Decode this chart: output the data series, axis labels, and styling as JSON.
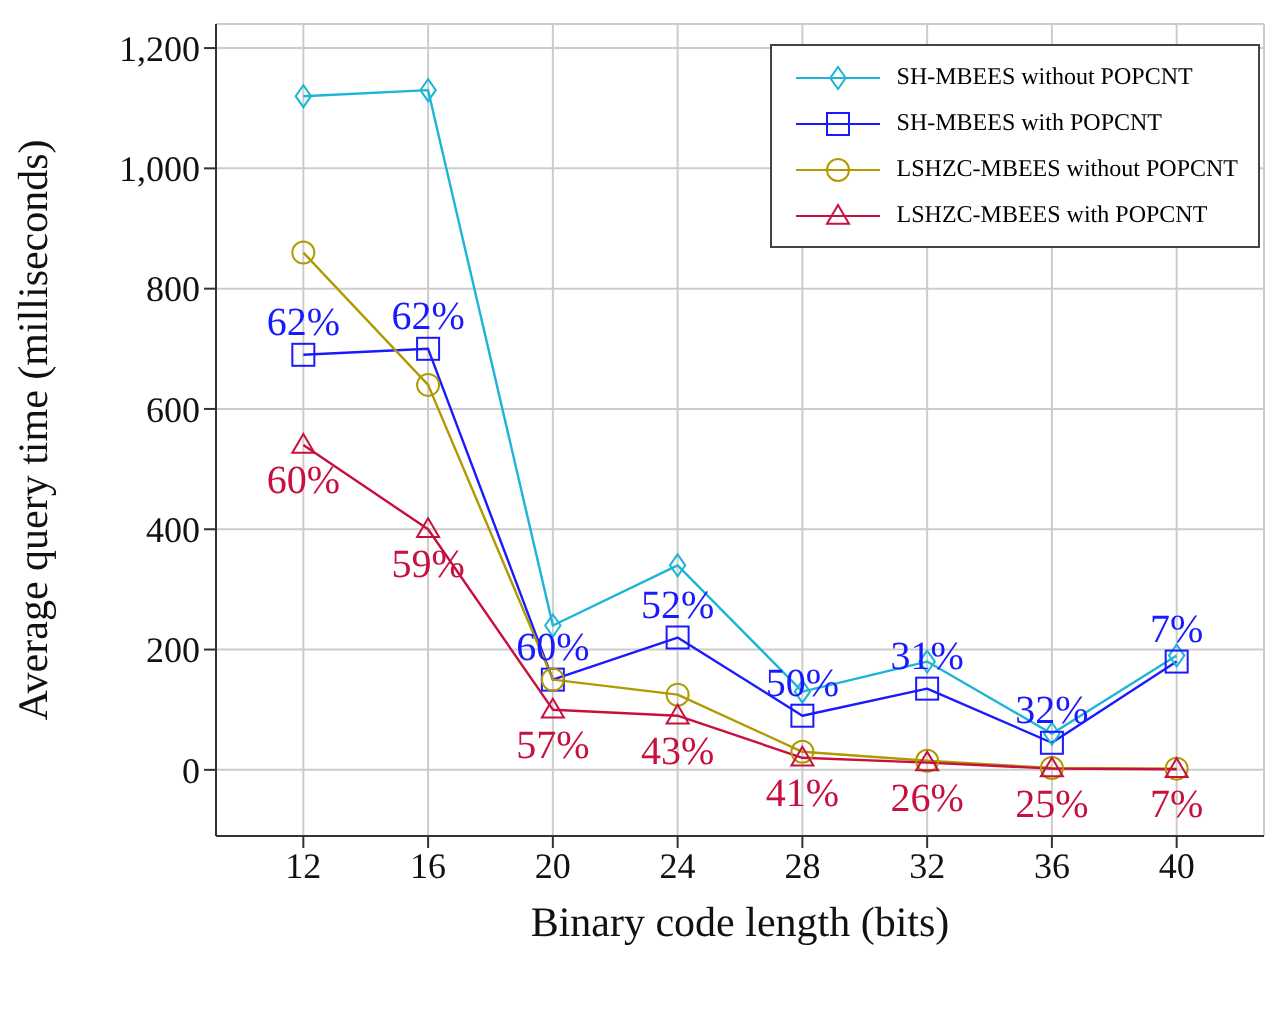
{
  "chart_data": {
    "type": "line",
    "xlabel": "Binary code length (bits)",
    "ylabel": "Average query time (milliseconds)",
    "categories": [
      "12",
      "16",
      "20",
      "24",
      "28",
      "32",
      "36",
      "40"
    ],
    "ylim": [
      -110,
      1240
    ],
    "yticks": [
      0,
      200,
      400,
      600,
      800,
      {
        "value": 1000,
        "label": "1,000"
      },
      {
        "value": 1200,
        "label": "1,200"
      }
    ],
    "grid": true,
    "legend": "top right",
    "line_style": "solid",
    "series": [
      {
        "name": "SH-MBEES without POPCNT",
        "color": "#1cb5d8",
        "marker": "diamond",
        "values": [
          1120,
          1130,
          240,
          340,
          130,
          180,
          60,
          190
        ]
      },
      {
        "name": "SH-MBEES with POPCNT",
        "color": "#1a1aff",
        "marker": "square",
        "values": [
          690,
          700,
          150,
          220,
          90,
          135,
          45,
          180
        ]
      },
      {
        "name": "LSHZC-MBEES without POPCNT",
        "color": "#b09a00",
        "marker": "circle",
        "values": [
          860,
          640,
          150,
          125,
          30,
          15,
          3,
          2
        ]
      },
      {
        "name": "LSHZC-MBEES with POPCNT",
        "color": "#c8103f",
        "marker": "triangle",
        "values": [
          540,
          400,
          100,
          90,
          20,
          12,
          2,
          1
        ]
      }
    ],
    "annotations": [
      {
        "text": "62%",
        "x": "12",
        "y": 690
      },
      {
        "text": "62%",
        "x": "16",
        "y": 700
      },
      {
        "text": "60%",
        "x": "20",
        "y": 150
      },
      {
        "text": "52%",
        "x": "24",
        "y": 220
      },
      {
        "text": "50%",
        "x": "28",
        "y": 90
      },
      {
        "text": "31%",
        "x": "32",
        "y": 135
      },
      {
        "text": "32%",
        "x": "36",
        "y": 45
      },
      {
        "text": "7%",
        "x": "40",
        "y": 180
      },
      {
        "text": "60%",
        "x": "12",
        "y": 540
      },
      {
        "text": "59%",
        "x": "16",
        "y": 400
      },
      {
        "text": "57%",
        "x": "20",
        "y": 100
      },
      {
        "text": "43%",
        "x": "24",
        "y": 90
      },
      {
        "text": "41%",
        "x": "28",
        "y": 20
      },
      {
        "text": "26%",
        "x": "32",
        "y": 12
      },
      {
        "text": "25%",
        "x": "36",
        "y": 2
      },
      {
        "text": "7%",
        "x": "40",
        "y": 1
      }
    ]
  }
}
